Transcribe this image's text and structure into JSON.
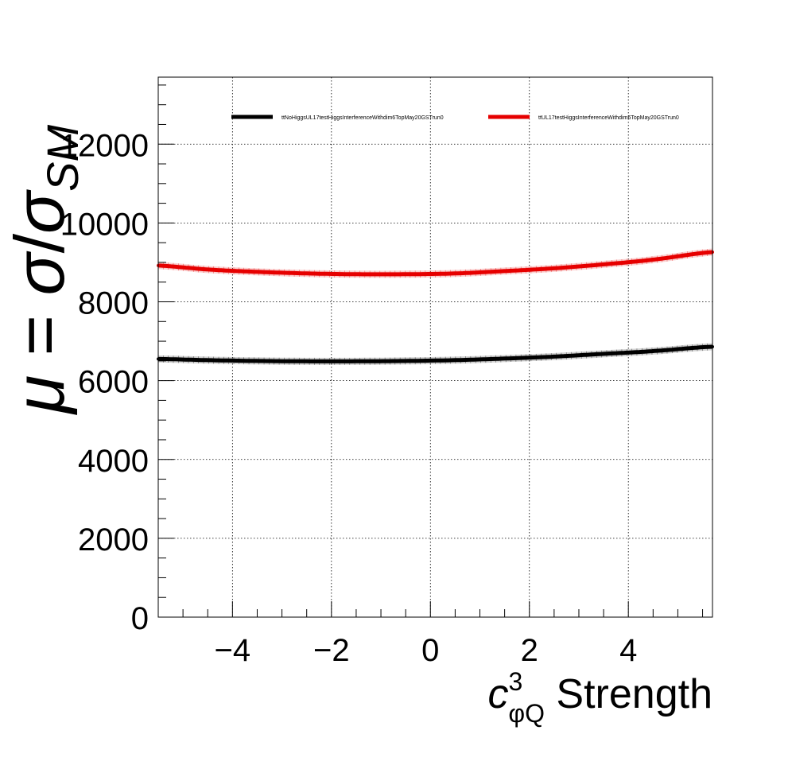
{
  "chart_data": {
    "type": "line",
    "xlabel": {
      "symbol": "c",
      "superscript": "3",
      "subscript": "φQ",
      "suffix": " Strength"
    },
    "ylabel": {
      "mu": "μ",
      "equals": " = ",
      "sigma": "σ",
      "slash": "/",
      "sigma_sm": "σ",
      "sm_subscript": "SM"
    },
    "xlim": [
      -5.5,
      5.7
    ],
    "ylim": [
      0,
      13700
    ],
    "xticks": [
      -4,
      -2,
      0,
      2,
      4
    ],
    "xtick_labels": [
      "−4",
      "−2",
      "0",
      "2",
      "4"
    ],
    "yticks": [
      0,
      2000,
      4000,
      6000,
      8000,
      10000,
      12000
    ],
    "ytick_labels": [
      "0",
      "2000",
      "4000",
      "6000",
      "8000",
      "10000",
      "12000"
    ],
    "grid": true,
    "legend_position": "top",
    "series": [
      {
        "name": "ttNoHiggsUL17testHiggsInterferenceWithdim6TopMay20GSTrun0",
        "color": "#000000",
        "x": [
          -5.5,
          -4.5,
          -3.5,
          -2.5,
          -1.5,
          -0.5,
          0.5,
          1.5,
          2.5,
          3.5,
          4.5,
          5.7
        ],
        "y": [
          6550,
          6520,
          6500,
          6490,
          6490,
          6500,
          6520,
          6560,
          6610,
          6680,
          6750,
          6860
        ]
      },
      {
        "name": "ttUL17testHiggsInterferenceWithdim6TopMay20GSTrun0",
        "color": "#e60000",
        "x": [
          -5.5,
          -4.5,
          -3.5,
          -2.5,
          -1.5,
          -0.5,
          0.5,
          1.5,
          2.5,
          3.5,
          4.5,
          5.7
        ],
        "y": [
          8920,
          8820,
          8760,
          8720,
          8700,
          8700,
          8720,
          8780,
          8850,
          8950,
          9070,
          9260
        ]
      }
    ]
  }
}
